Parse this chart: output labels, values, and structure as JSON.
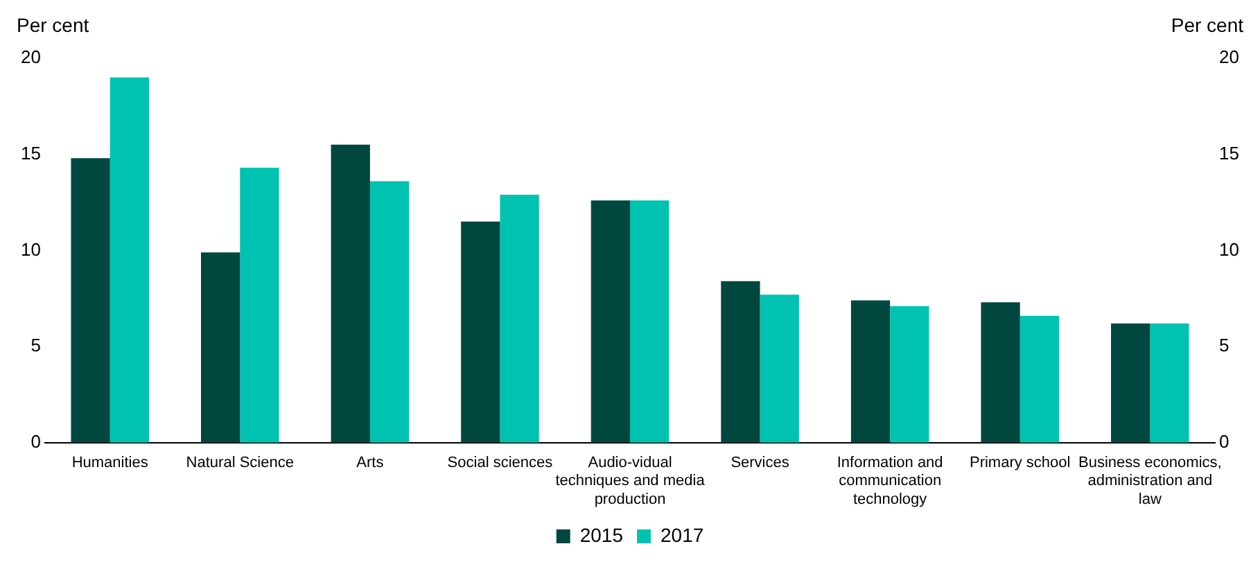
{
  "chart_data": {
    "type": "bar",
    "ylabel": "Per cent",
    "y2label": "Per cent",
    "categories": [
      "Humanities",
      "Natural Science",
      "Arts",
      "Social sciences",
      "Audio-vidual techniques and media production",
      "Services",
      "Information and communication technology",
      "Primary school",
      "Business economics, administration and law"
    ],
    "series": [
      {
        "name": "2015",
        "color": "#004740",
        "values": [
          14.8,
          9.9,
          15.5,
          11.5,
          12.6,
          8.4,
          7.4,
          7.3,
          6.2
        ]
      },
      {
        "name": "2017",
        "color": "#00c2b0",
        "values": [
          19.0,
          14.3,
          13.6,
          12.9,
          12.6,
          7.7,
          7.1,
          6.6,
          6.2
        ]
      }
    ],
    "ylim": [
      0,
      20
    ],
    "yticks": [
      0,
      5,
      10,
      15,
      20
    ],
    "y2lim": [
      0,
      20
    ],
    "y2ticks": [
      0,
      5,
      10,
      15,
      20
    ],
    "grid": false,
    "legend": "bottom"
  }
}
